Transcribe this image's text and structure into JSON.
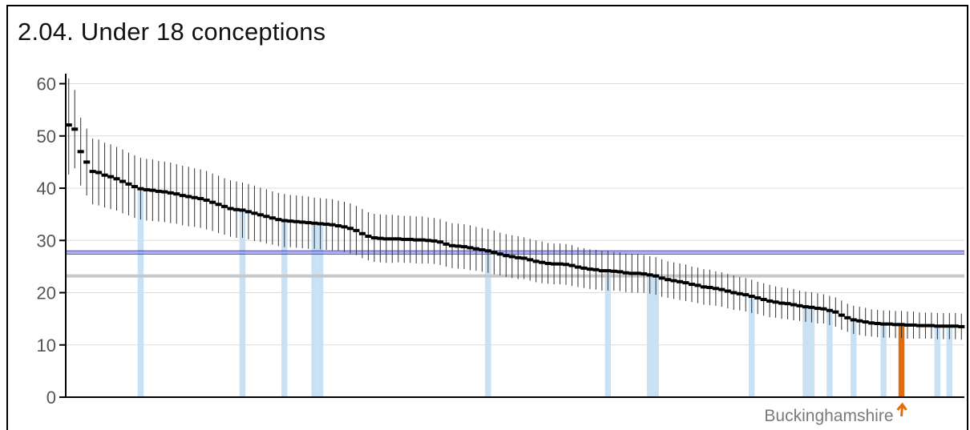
{
  "chart_data": {
    "type": "scatter",
    "title": "2.04. Under 18 conceptions",
    "subtitle": "",
    "xlabel": "",
    "ylabel": "",
    "ylim": [
      0,
      61
    ],
    "yticks": [
      0,
      10,
      20,
      30,
      40,
      50,
      60
    ],
    "grid": true,
    "n_areas": 150,
    "values": [
      52.1,
      51.3,
      47.0,
      45.0,
      43.2,
      43.0,
      42.5,
      42.2,
      41.8,
      41.3,
      40.8,
      40.3,
      39.9,
      39.7,
      39.6,
      39.4,
      39.3,
      39.1,
      38.9,
      38.6,
      38.4,
      38.2,
      38.0,
      37.7,
      37.3,
      36.9,
      36.5,
      36.1,
      35.9,
      35.8,
      35.5,
      35.2,
      34.9,
      34.6,
      34.3,
      34.0,
      33.8,
      33.7,
      33.6,
      33.5,
      33.4,
      33.3,
      33.2,
      33.1,
      33.0,
      32.8,
      32.6,
      32.3,
      31.9,
      31.3,
      30.8,
      30.5,
      30.4,
      30.3,
      30.3,
      30.3,
      30.2,
      30.2,
      30.1,
      30.1,
      30.0,
      29.9,
      29.7,
      29.3,
      29.0,
      28.9,
      28.8,
      28.6,
      28.4,
      28.2,
      28.0,
      27.7,
      27.4,
      27.1,
      26.9,
      26.7,
      26.6,
      26.3,
      26.0,
      25.8,
      25.6,
      25.5,
      25.5,
      25.4,
      25.2,
      24.9,
      24.7,
      24.5,
      24.4,
      24.2,
      24.2,
      24.1,
      24.0,
      23.8,
      23.7,
      23.7,
      23.6,
      23.4,
      23.2,
      22.8,
      22.5,
      22.3,
      22.1,
      21.9,
      21.6,
      21.4,
      21.1,
      21.0,
      20.8,
      20.6,
      20.3,
      20.0,
      19.8,
      19.6,
      19.3,
      19.0,
      18.7,
      18.4,
      18.2,
      18.0,
      17.9,
      17.7,
      17.5,
      17.3,
      17.2,
      17.0,
      16.9,
      16.6,
      16.3,
      15.7,
      15.2,
      14.8,
      14.6,
      14.4,
      14.2,
      14.1,
      14.0,
      14.0,
      13.9,
      13.9,
      13.8,
      13.8,
      13.7,
      13.7,
      13.7,
      13.6,
      13.6,
      13.6,
      13.6,
      13.5
    ],
    "error_half_width": [
      9.5,
      7.5,
      6.5,
      6.4,
      6.3,
      6.3,
      6.2,
      6.2,
      6.1,
      6.1,
      6.0,
      6.0,
      5.9,
      5.9,
      5.9,
      5.8,
      5.8,
      5.8,
      5.7,
      5.7,
      5.7,
      5.6,
      5.6,
      5.6,
      5.5,
      5.5,
      5.4,
      5.4,
      5.4,
      5.3,
      5.3,
      5.3,
      5.2,
      5.2,
      5.1,
      5.1,
      5.1,
      5.0,
      5.0,
      5.0,
      5.0,
      4.9,
      4.9,
      4.9,
      4.9,
      4.8,
      4.8,
      4.8,
      4.7,
      4.7,
      4.6,
      4.6,
      4.6,
      4.6,
      4.6,
      4.5,
      4.5,
      4.5,
      4.5,
      4.5,
      4.4,
      4.4,
      4.4,
      4.3,
      4.3,
      4.3,
      4.3,
      4.3,
      4.2,
      4.2,
      4.2,
      4.2,
      4.1,
      4.1,
      4.1,
      4.1,
      4.0,
      4.0,
      4.0,
      4.0,
      3.9,
      3.9,
      3.9,
      3.9,
      3.9,
      3.8,
      3.8,
      3.8,
      3.8,
      3.8,
      3.8,
      3.7,
      3.7,
      3.7,
      3.7,
      3.7,
      3.6,
      3.6,
      3.6,
      3.6,
      3.5,
      3.5,
      3.5,
      3.5,
      3.4,
      3.4,
      3.4,
      3.4,
      3.3,
      3.3,
      3.3,
      3.3,
      3.2,
      3.2,
      3.2,
      3.1,
      3.1,
      3.1,
      3.0,
      3.0,
      3.0,
      3.0,
      2.9,
      2.9,
      2.9,
      2.9,
      2.8,
      2.8,
      2.8,
      2.8,
      2.7,
      2.7,
      2.7,
      2.7,
      2.6,
      2.6,
      2.6,
      2.6,
      2.6,
      2.6,
      2.6,
      2.6,
      2.5,
      2.5,
      2.5,
      2.5,
      2.5,
      2.5,
      2.5,
      2.5
    ],
    "highlight_group_indices": [
      12,
      29,
      36,
      41,
      42,
      70,
      90,
      97,
      98,
      114,
      123,
      124,
      127,
      131,
      136,
      145,
      147
    ],
    "highlight_color": "#c8e1f5",
    "selected": {
      "name": "Buckinghamshire",
      "index": 139,
      "color": "#e36c0a"
    },
    "reference_lines": [
      {
        "value": 27.7,
        "color": "#2e2ee0"
      },
      {
        "value": 23.2,
        "color": "#c8c8c8"
      }
    ],
    "marker_color": "#000000",
    "errorbar_color": "#333333",
    "gridline_color": "#dcdcdc"
  }
}
